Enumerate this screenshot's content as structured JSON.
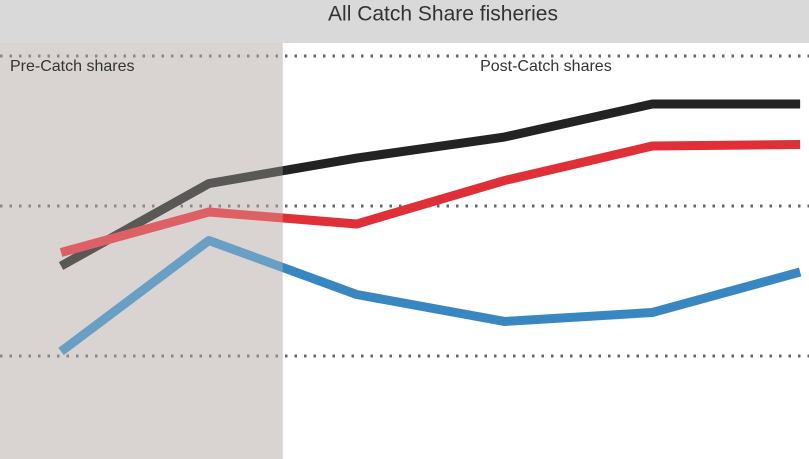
{
  "chart_data": {
    "type": "line",
    "title": "All Catch Share fisheries",
    "x": [
      1,
      2,
      3,
      4,
      5,
      6
    ],
    "xlim": [
      0.587,
      6.06
    ],
    "ylim": [
      0.313,
      3.087
    ],
    "yticks": [
      1,
      2,
      3
    ],
    "grid": true,
    "regions": [
      {
        "label": "Pre-Catch shares",
        "xlim": [
          0.587,
          2.5
        ],
        "color": "#d9d4d2"
      },
      {
        "label": "Post-Catch shares",
        "xlim": [
          2.5,
          6.06
        ],
        "color": "#ffffff"
      }
    ],
    "series": [
      {
        "color": "#232323",
        "values": [
          1.6,
          2.15,
          2.32,
          2.46,
          2.68,
          2.68
        ]
      },
      {
        "color": "#df2f37",
        "values": [
          1.69,
          1.96,
          1.88,
          2.17,
          2.4,
          2.41
        ]
      },
      {
        "color": "#3987c1",
        "values": [
          1.03,
          1.77,
          1.41,
          1.23,
          1.29,
          1.56
        ]
      }
    ]
  }
}
